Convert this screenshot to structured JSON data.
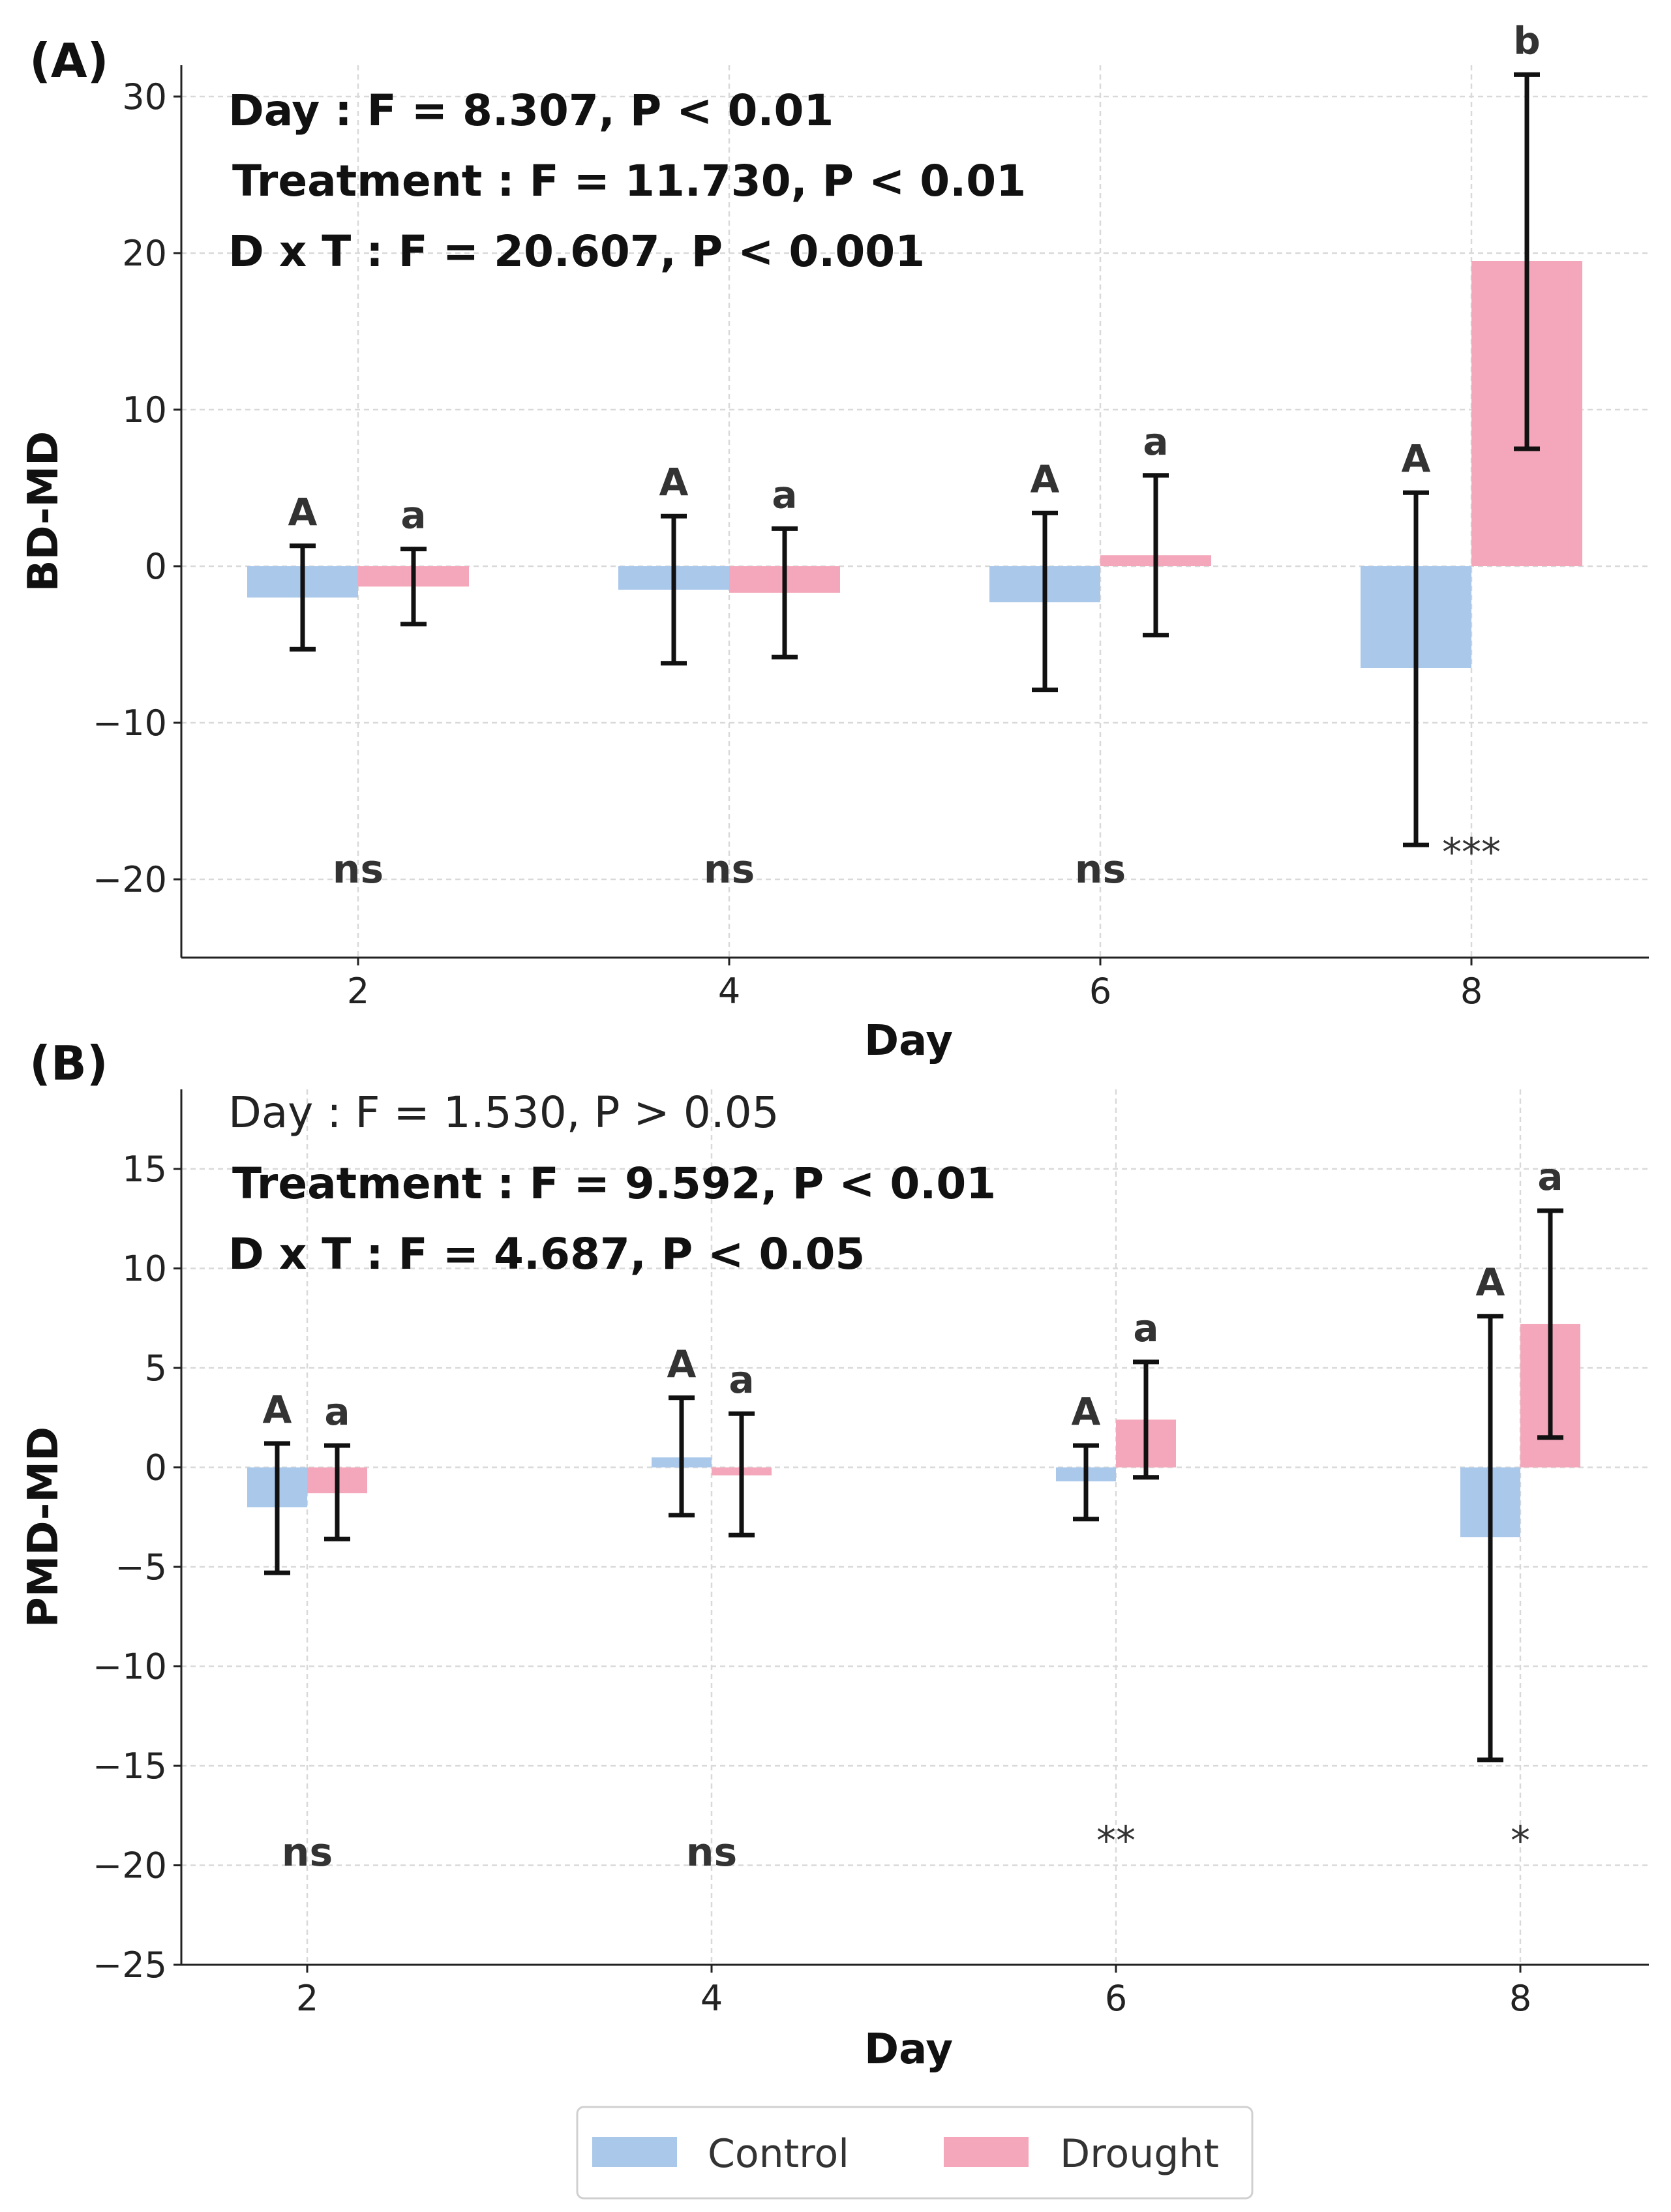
{
  "legend": {
    "items": [
      {
        "label": "Control",
        "color": "#a9c8ea"
      },
      {
        "label": "Drought",
        "color": "#f4a7ba"
      }
    ]
  },
  "chart_data": [
    {
      "panel": "(A)",
      "type": "bar",
      "xlabel": "Day",
      "ylabel": "BD-MD",
      "categories": [
        "2",
        "4",
        "6",
        "8"
      ],
      "ylim": [
        -25,
        32
      ],
      "yticks": [
        30,
        20,
        10,
        0,
        -10,
        -20
      ],
      "ytick_labels": [
        "30",
        "20",
        "10",
        "0",
        "−10",
        "−20"
      ],
      "grid": true,
      "stats": [
        {
          "text": "Day : F = 8.307, P < 0.01",
          "bold": true
        },
        {
          "text": "Treatment : F = 11.730, P < 0.01",
          "bold": true
        },
        {
          "text": "D x T : F = 20.607, P < 0.001",
          "bold": true
        }
      ],
      "series": [
        {
          "name": "Control",
          "values": [
            -2.0,
            -1.5,
            -2.3,
            -6.5
          ],
          "err_low": [
            -5.3,
            -6.2,
            -7.9,
            -17.8
          ],
          "err_high": [
            1.3,
            3.2,
            3.4,
            4.7
          ],
          "letters": [
            "A",
            "A",
            "A",
            "A"
          ]
        },
        {
          "name": "Drought",
          "values": [
            -1.3,
            -1.7,
            0.7,
            19.5
          ],
          "err_low": [
            -3.7,
            -5.8,
            -4.4,
            7.5
          ],
          "err_high": [
            1.1,
            2.4,
            5.8,
            31.4
          ],
          "letters": [
            "a",
            "a",
            "a",
            "b"
          ]
        }
      ],
      "significance": [
        "ns",
        "ns",
        "ns",
        "***"
      ]
    },
    {
      "panel": "(B)",
      "type": "bar",
      "xlabel": "Day",
      "ylabel": "PMD-MD",
      "categories": [
        "2",
        "4",
        "6",
        "8"
      ],
      "ylim": [
        -25,
        19
      ],
      "yticks": [
        15,
        10,
        5,
        0,
        -5,
        -10,
        -15,
        -20,
        -25
      ],
      "ytick_labels": [
        "15",
        "10",
        "5",
        "0",
        "−5",
        "−10",
        "−15",
        "−20",
        "−25"
      ],
      "grid": true,
      "stats": [
        {
          "text": "Day : F = 1.530, P > 0.05",
          "bold": false
        },
        {
          "text": "Treatment : F = 9.592, P < 0.01",
          "bold": true
        },
        {
          "text": "D x T : F = 4.687, P < 0.05",
          "bold": true
        }
      ],
      "series": [
        {
          "name": "Control",
          "values": [
            -2.0,
            0.5,
            -0.7,
            -3.5
          ],
          "err_low": [
            -5.3,
            -2.4,
            -2.6,
            -14.7
          ],
          "err_high": [
            1.2,
            3.5,
            1.1,
            7.6
          ],
          "letters": [
            "A",
            "A",
            "A",
            "A"
          ]
        },
        {
          "name": "Drought",
          "values": [
            -1.3,
            -0.4,
            2.4,
            7.2
          ],
          "err_low": [
            -3.6,
            -3.4,
            -0.5,
            1.5
          ],
          "err_high": [
            1.1,
            2.7,
            5.3,
            12.9
          ],
          "letters": [
            "a",
            "a",
            "a",
            "a"
          ]
        }
      ],
      "significance": [
        "ns",
        "ns",
        "**",
        "*"
      ]
    }
  ]
}
